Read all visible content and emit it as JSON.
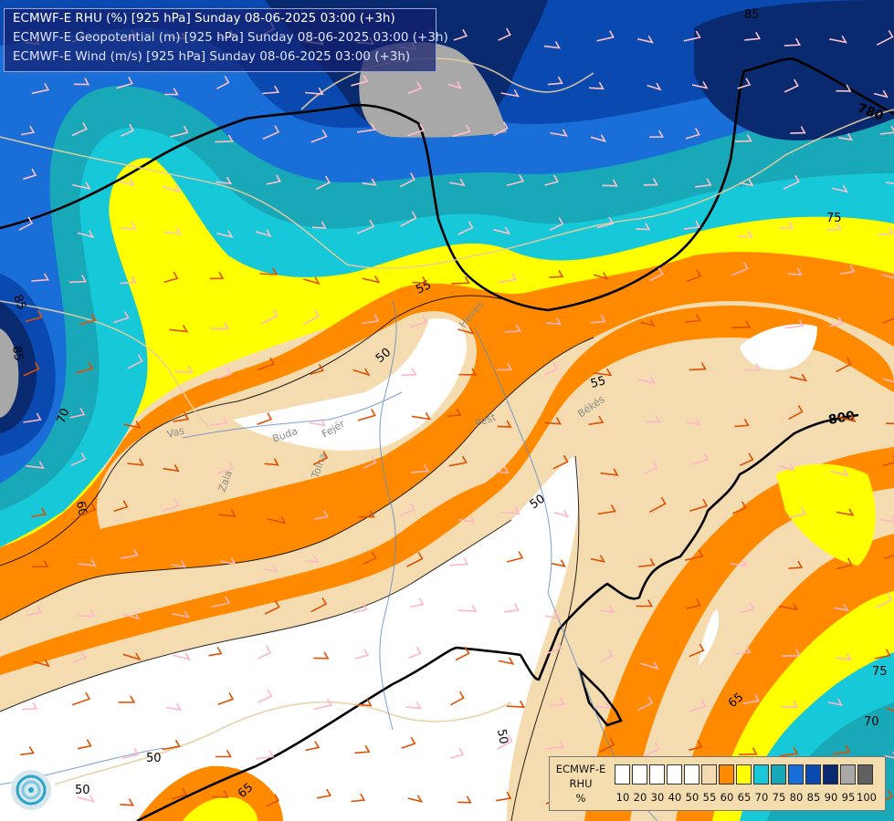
{
  "title": {
    "line1": "ECMWF-E RHU (%) [925 hPa] Sunday 08-06-2025 03:00 (+3h)",
    "line2": "ECMWF-E Geopotential (m) [925 hPa] Sunday 08-06-2025 03:00 (+3h)",
    "line3": "ECMWF-E Wind (m/s) [925 hPa] Sunday 08-06-2025 03:00 (+3h)"
  },
  "legend": {
    "model": "ECMWF-E",
    "variable": "RHU",
    "unit": "%",
    "ticks": [
      "10",
      "20",
      "30",
      "40",
      "50",
      "55",
      "60",
      "65",
      "70",
      "75",
      "80",
      "85",
      "90",
      "95",
      "100"
    ],
    "colors": [
      "#ffffff",
      "#ffffff",
      "#ffffff",
      "#ffffff",
      "#ffffff",
      "#f5dcb0",
      "#ff8a00",
      "#ffff00",
      "#16c8d8",
      "#19a8b8",
      "#1a6ed8",
      "#0a4ab0",
      "#0a2a70",
      "#a8a8a8",
      "#606060"
    ]
  },
  "contour_labels": {
    "rhu": [
      "85",
      "85",
      "85",
      "75",
      "70",
      "60",
      "55",
      "55",
      "50",
      "50",
      "50",
      "50",
      "50",
      "65",
      "70",
      "75",
      "65"
    ],
    "geopotential": [
      "780",
      "800"
    ]
  },
  "place_labels": [
    "Vas",
    "Zala",
    "Fejér",
    "Tolna",
    "Pest",
    "Békés",
    "Heves",
    "Buda"
  ],
  "map": {
    "colors": {
      "white": "#ffffff",
      "tan": "#f5dcb0",
      "orange": "#ff8a00",
      "yellow": "#ffff00",
      "cyan": "#16c8d8",
      "teal": "#19a8b8",
      "blue": "#1a6ed8",
      "midnight": "#0a4ab0",
      "navy": "#0a2a70",
      "gray": "#a8a8a8"
    }
  },
  "icons": [
    "wind-barb-icon",
    "city-marker-icon",
    "ecmwf-logo-icon"
  ]
}
